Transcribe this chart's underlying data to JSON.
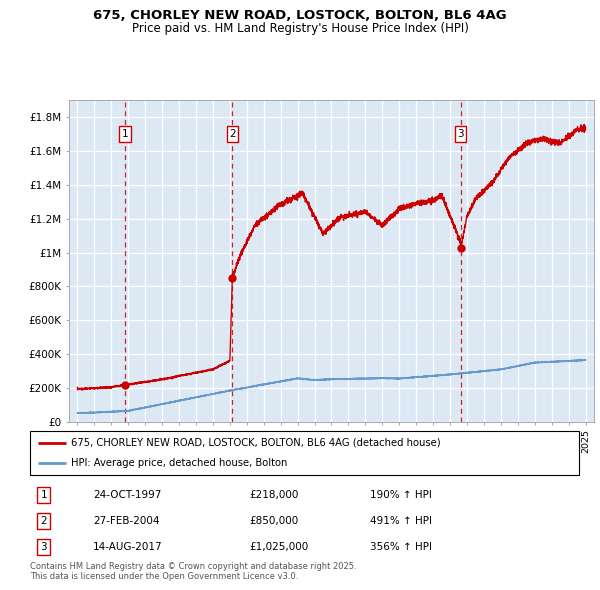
{
  "title_line1": "675, CHORLEY NEW ROAD, LOSTOCK, BOLTON, BL6 4AG",
  "title_line2": "Price paid vs. HM Land Registry's House Price Index (HPI)",
  "legend_line1": "675, CHORLEY NEW ROAD, LOSTOCK, BOLTON, BL6 4AG (detached house)",
  "legend_line2": "HPI: Average price, detached house, Bolton",
  "transactions": [
    {
      "num": 1,
      "date": "24-OCT-1997",
      "price": 218000,
      "hpi_pct": "190% ↑ HPI",
      "year": 1997.81
    },
    {
      "num": 2,
      "date": "27-FEB-2004",
      "price": 850000,
      "hpi_pct": "491% ↑ HPI",
      "year": 2004.15
    },
    {
      "num": 3,
      "date": "14-AUG-2017",
      "price": 1025000,
      "hpi_pct": "356% ↑ HPI",
      "year": 2017.62
    }
  ],
  "footnote": "Contains HM Land Registry data © Crown copyright and database right 2025.\nThis data is licensed under the Open Government Licence v3.0.",
  "bg_color": "#dce9f5",
  "red_color": "#cc0000",
  "blue_color": "#6699cc",
  "grid_color": "#ffffff",
  "ylim": [
    0,
    1900000
  ],
  "xlim": [
    1994.5,
    2025.5
  ],
  "table_rows": [
    [
      "1",
      "24-OCT-1997",
      "£218,000",
      "190% ↑ HPI"
    ],
    [
      "2",
      "27-FEB-2004",
      "£850,000",
      "491% ↑ HPI"
    ],
    [
      "3",
      "14-AUG-2017",
      "£1,025,000",
      "356% ↑ HPI"
    ]
  ]
}
